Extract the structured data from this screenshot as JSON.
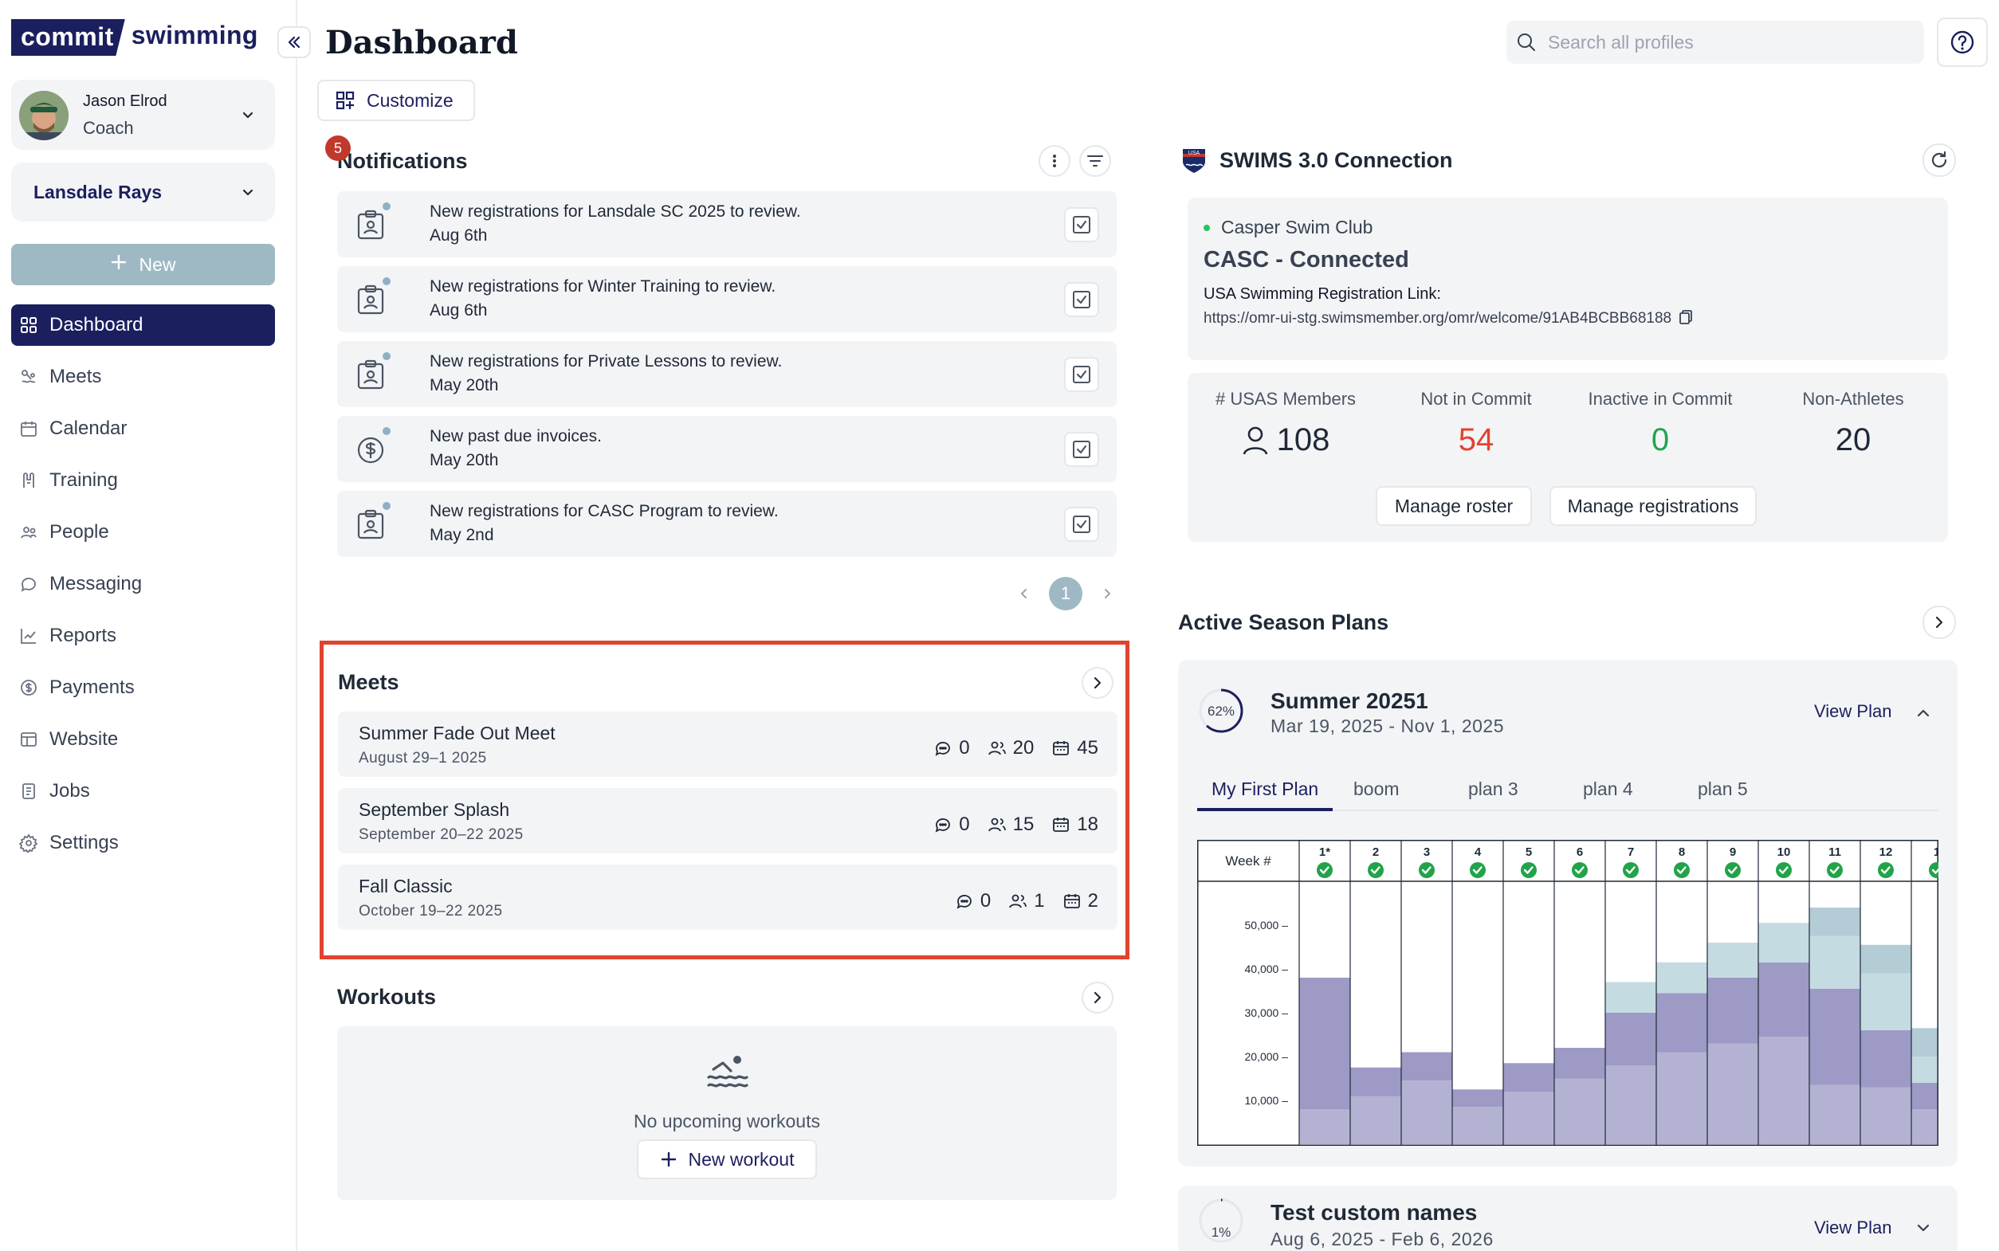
{
  "brand": {
    "part1": "commit",
    "part2": "swimming"
  },
  "user": {
    "name": "Jason Elrod",
    "role": "Coach"
  },
  "team": {
    "name": "Lansdale Rays"
  },
  "new_button": "New",
  "nav": [
    {
      "label": "Dashboard",
      "icon": "dashboard-icon",
      "active": true
    },
    {
      "label": "Meets",
      "icon": "meets-icon"
    },
    {
      "label": "Calendar",
      "icon": "calendar-icon"
    },
    {
      "label": "Training",
      "icon": "training-icon"
    },
    {
      "label": "People",
      "icon": "people-icon"
    },
    {
      "label": "Messaging",
      "icon": "messaging-icon"
    },
    {
      "label": "Reports",
      "icon": "reports-icon"
    },
    {
      "label": "Payments",
      "icon": "payments-icon"
    },
    {
      "label": "Website",
      "icon": "website-icon"
    },
    {
      "label": "Jobs",
      "icon": "jobs-icon"
    },
    {
      "label": "Settings",
      "icon": "settings-icon"
    }
  ],
  "header": {
    "title": "Dashboard",
    "search_placeholder": "Search all profiles",
    "customize": "Customize"
  },
  "notifications": {
    "title": "Notifications",
    "badge": "5",
    "items": [
      {
        "text": "New registrations for Lansdale SC 2025 to review.",
        "date": "Aug 6th",
        "icon": "id-badge-icon"
      },
      {
        "text": "New registrations for Winter Training to review.",
        "date": "Aug 6th",
        "icon": "id-badge-icon"
      },
      {
        "text": "New registrations for Private Lessons to review.",
        "date": "May 20th",
        "icon": "id-badge-icon"
      },
      {
        "text": "New past due invoices.",
        "date": "May 20th",
        "icon": "dollar-icon"
      },
      {
        "text": "New registrations for CASC Program to review.",
        "date": "May 2nd",
        "icon": "id-badge-icon"
      }
    ],
    "page": "1"
  },
  "meets": {
    "title": "Meets",
    "items": [
      {
        "name": "Summer Fade Out Meet",
        "dates": "August 29–1 2025",
        "comments": "0",
        "athletes": "20",
        "entries": "45"
      },
      {
        "name": "September Splash",
        "dates": "September 20–22 2025",
        "comments": "0",
        "athletes": "15",
        "entries": "18"
      },
      {
        "name": "Fall Classic",
        "dates": "October 19–22 2025",
        "comments": "0",
        "athletes": "1",
        "entries": "2"
      }
    ]
  },
  "workouts": {
    "title": "Workouts",
    "empty_text": "No upcoming workouts",
    "new_button": "New workout"
  },
  "swims": {
    "title": "SWIMS 3.0 Connection",
    "club": "Casper Swim Club",
    "status": "CASC - Connected",
    "reg_label": "USA Swimming Registration Link:",
    "reg_link": "https://omr-ui-stg.swimsmember.org/omr/welcome/91AB4BCBB68188",
    "stats": [
      {
        "label": "# USAS Members",
        "value": "108",
        "color": "#1f2937"
      },
      {
        "label": "Not in Commit",
        "value": "54",
        "color": "#e0432f"
      },
      {
        "label": "Inactive in Commit",
        "value": "0",
        "color": "#22a34a"
      },
      {
        "label": "Non-Athletes",
        "value": "20",
        "color": "#1f2937"
      }
    ],
    "manage_roster": "Manage roster",
    "manage_registrations": "Manage registrations"
  },
  "season_plans": {
    "title": "Active Season Plans",
    "plans": [
      {
        "name": "Summer 20251",
        "dates": "Mar 19, 2025  - Nov 1, 2025",
        "progress": "62%",
        "progress_value": 0.62,
        "view_label": "View Plan",
        "tabs": [
          "My First Plan",
          "boom",
          "plan 3",
          "plan 4",
          "plan 5"
        ],
        "active_tab": 0
      },
      {
        "name": "Test custom names",
        "dates": "Aug 6, 2025  - Feb 6, 2026",
        "progress": "1%",
        "progress_value": 0.01,
        "view_label": "View Plan"
      }
    ]
  },
  "chart_data": {
    "type": "bar",
    "xlabel": "Week #",
    "categories": [
      "1*",
      "2",
      "3",
      "4",
      "5",
      "6",
      "7",
      "8",
      "9",
      "10",
      "11",
      "12",
      "1"
    ],
    "yticks": [
      "50,000 –",
      "40,000 –",
      "30,000 –",
      "20,000 –",
      "10,000 –"
    ],
    "ylim": [
      0,
      60000
    ],
    "series": [
      {
        "values": [
          8000,
          11000,
          14500,
          8500,
          12000,
          15000,
          18000,
          21000,
          23000,
          24500,
          13500,
          13000,
          8000
        ],
        "color": "#b4b2d3"
      },
      {
        "values": [
          30000,
          6500,
          6500,
          4000,
          6500,
          7000,
          12000,
          13500,
          15000,
          17000,
          22000,
          13000,
          6000
        ],
        "color": "#9d9ac6"
      },
      {
        "values": [
          0,
          0,
          0,
          0,
          0,
          0,
          7000,
          7000,
          8000,
          9000,
          12000,
          13000,
          6000
        ],
        "color": "#c5dbe2"
      },
      {
        "values": [
          0,
          0,
          0,
          0,
          0,
          0,
          0,
          0,
          0,
          0,
          6500,
          6500,
          6500
        ],
        "color": "#b3ccd6"
      }
    ],
    "colors": {
      "check": "#22a34a"
    }
  }
}
